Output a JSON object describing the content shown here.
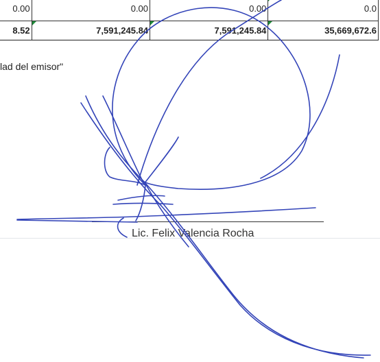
{
  "table": {
    "rows": [
      [
        "0.00",
        "0.00",
        "0.00",
        "0.0"
      ],
      [
        "8.52",
        "7,591,245.84",
        "7,591,245.84",
        "35,669,672.6"
      ]
    ]
  },
  "note": "lad del emisor\"",
  "signer": "Lic. Felix Valencia Rocha"
}
